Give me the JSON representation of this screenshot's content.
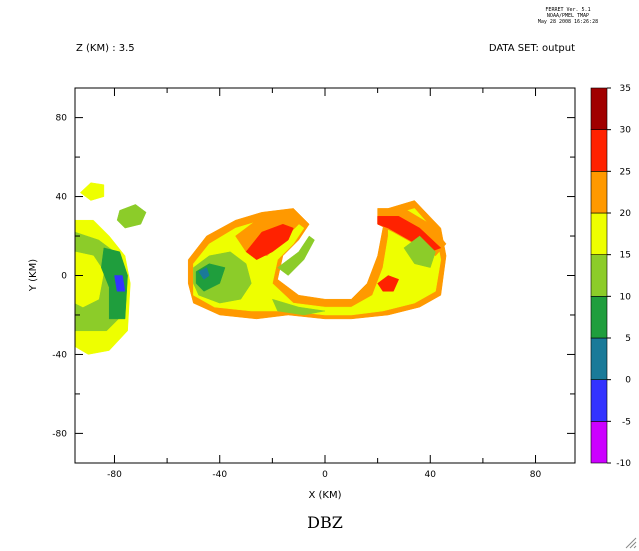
{
  "header": {
    "ferret_lines": [
      "FERRET Ver. 5.1",
      "NOAA/PMEL TMAP",
      "May 28 2008 16:26:28"
    ],
    "z_label": "Z (KM) : 3.5",
    "dataset_label": "DATA SET: output"
  },
  "colors": {
    "levels": [
      "#cc00ff",
      "#3333ff",
      "#1a7a99",
      "#1f9e3d",
      "#8ccc29",
      "#eeff00",
      "#ff9900",
      "#ff2200",
      "#a00000"
    ],
    "background": "#ffffff",
    "axis": "#000000"
  },
  "chart_data": {
    "type": "heatmap",
    "title": "DBZ",
    "xlabel": "X (KM)",
    "ylabel": "Y (KM)",
    "xlim": [
      -95,
      95
    ],
    "ylim": [
      -95,
      95
    ],
    "xticks": [
      -80,
      -40,
      0,
      40,
      80
    ],
    "yticks": [
      80,
      40,
      0,
      -40,
      -80
    ],
    "xtick_labels": [
      "-80",
      "-40",
      "0",
      "40",
      "80"
    ],
    "ytick_labels": [
      "80",
      "40",
      "0",
      "-40",
      "-80"
    ],
    "colorbar": {
      "levels": [
        -10,
        -5,
        0,
        5,
        10,
        15,
        20,
        25,
        30,
        35
      ],
      "labels": [
        "35",
        "30",
        "25",
        "20",
        "15",
        "10",
        "5",
        "0",
        "-5",
        "-10"
      ],
      "placement": "right"
    },
    "regions": [
      {
        "name": "west-cell",
        "level": 15,
        "points": [
          [
            -95,
            28
          ],
          [
            -88,
            28
          ],
          [
            -82,
            20
          ],
          [
            -76,
            10
          ],
          [
            -74,
            -4
          ],
          [
            -75,
            -28
          ],
          [
            -82,
            -38
          ],
          [
            -90,
            -40
          ],
          [
            -95,
            -36
          ]
        ]
      },
      {
        "name": "west-cell-core",
        "level": 10,
        "points": [
          [
            -95,
            22
          ],
          [
            -86,
            18
          ],
          [
            -80,
            12
          ],
          [
            -77,
            0
          ],
          [
            -77,
            -20
          ],
          [
            -83,
            -28
          ],
          [
            -95,
            -28
          ]
        ]
      },
      {
        "name": "west-cell-inner",
        "level": 15,
        "points": [
          [
            -95,
            12
          ],
          [
            -88,
            10
          ],
          [
            -84,
            2
          ],
          [
            -86,
            -12
          ],
          [
            -92,
            -16
          ],
          [
            -95,
            -14
          ]
        ]
      },
      {
        "name": "west-cell-green",
        "level": 5,
        "points": [
          [
            -84,
            14
          ],
          [
            -78,
            12
          ],
          [
            -75,
            0
          ],
          [
            -76,
            -22
          ],
          [
            -82,
            -22
          ],
          [
            -82,
            -6
          ],
          [
            -85,
            4
          ]
        ]
      },
      {
        "name": "west-cell-blue",
        "level": -5,
        "points": [
          [
            -80,
            0
          ],
          [
            -77,
            0
          ],
          [
            -76,
            -8
          ],
          [
            -79,
            -8
          ]
        ]
      },
      {
        "name": "nw-blob-yellow",
        "level": 15,
        "points": [
          [
            -93,
            42
          ],
          [
            -89,
            47
          ],
          [
            -84,
            46
          ],
          [
            -84,
            40
          ],
          [
            -89,
            38
          ]
        ]
      },
      {
        "name": "nw-blob-green",
        "level": 10,
        "points": [
          [
            -78,
            33
          ],
          [
            -72,
            36
          ],
          [
            -68,
            32
          ],
          [
            -70,
            26
          ],
          [
            -76,
            24
          ],
          [
            -79,
            28
          ]
        ]
      },
      {
        "name": "arc-outer",
        "level": 20,
        "points": [
          [
            -52,
            8
          ],
          [
            -45,
            20
          ],
          [
            -34,
            28
          ],
          [
            -24,
            32
          ],
          [
            -12,
            34
          ],
          [
            -6,
            26
          ],
          [
            -10,
            18
          ],
          [
            -16,
            10
          ],
          [
            -18,
            -2
          ],
          [
            -10,
            -10
          ],
          [
            0,
            -12
          ],
          [
            10,
            -12
          ],
          [
            16,
            -4
          ],
          [
            20,
            10
          ],
          [
            22,
            24
          ],
          [
            24,
            34
          ],
          [
            34,
            38
          ],
          [
            44,
            24
          ],
          [
            46,
            10
          ],
          [
            44,
            -10
          ],
          [
            36,
            -16
          ],
          [
            24,
            -20
          ],
          [
            10,
            -22
          ],
          [
            0,
            -22
          ],
          [
            -14,
            -20
          ],
          [
            -26,
            -22
          ],
          [
            -40,
            -20
          ],
          [
            -50,
            -14
          ],
          [
            -52,
            -4
          ]
        ]
      },
      {
        "name": "arc-yellow",
        "level": 15,
        "points": [
          [
            -50,
            6
          ],
          [
            -44,
            16
          ],
          [
            -34,
            24
          ],
          [
            -24,
            28
          ],
          [
            -14,
            30
          ],
          [
            -8,
            24
          ],
          [
            -12,
            16
          ],
          [
            -18,
            8
          ],
          [
            -20,
            -4
          ],
          [
            -12,
            -14
          ],
          [
            0,
            -16
          ],
          [
            10,
            -16
          ],
          [
            18,
            -10
          ],
          [
            22,
            4
          ],
          [
            24,
            20
          ],
          [
            24,
            30
          ],
          [
            34,
            34
          ],
          [
            42,
            22
          ],
          [
            44,
            8
          ],
          [
            42,
            -8
          ],
          [
            34,
            -14
          ],
          [
            22,
            -18
          ],
          [
            10,
            -20
          ],
          [
            0,
            -20
          ],
          [
            -14,
            -18
          ],
          [
            -28,
            -18
          ],
          [
            -42,
            -16
          ],
          [
            -50,
            -10
          ]
        ]
      },
      {
        "name": "arc-green-west",
        "level": 10,
        "points": [
          [
            -50,
            4
          ],
          [
            -44,
            10
          ],
          [
            -36,
            12
          ],
          [
            -30,
            6
          ],
          [
            -28,
            -4
          ],
          [
            -32,
            -12
          ],
          [
            -40,
            -14
          ],
          [
            -48,
            -10
          ],
          [
            -50,
            -4
          ]
        ]
      },
      {
        "name": "arc-darkgreen-west",
        "level": 5,
        "points": [
          [
            -49,
            2
          ],
          [
            -44,
            6
          ],
          [
            -38,
            4
          ],
          [
            -40,
            -4
          ],
          [
            -46,
            -8
          ],
          [
            -49,
            -4
          ]
        ]
      },
      {
        "name": "arc-teal-west",
        "level": 0,
        "points": [
          [
            -48,
            2
          ],
          [
            -45,
            4
          ],
          [
            -44,
            0
          ],
          [
            -46,
            -2
          ]
        ]
      },
      {
        "name": "arc-orange-nw",
        "level": 20,
        "points": [
          [
            -34,
            20
          ],
          [
            -24,
            30
          ],
          [
            -14,
            32
          ],
          [
            -10,
            26
          ],
          [
            -16,
            18
          ],
          [
            -22,
            10
          ],
          [
            -30,
            12
          ]
        ]
      },
      {
        "name": "arc-red-nw",
        "level": 25,
        "points": [
          [
            -30,
            12
          ],
          [
            -24,
            22
          ],
          [
            -16,
            26
          ],
          [
            -12,
            24
          ],
          [
            -14,
            18
          ],
          [
            -20,
            12
          ],
          [
            -26,
            8
          ]
        ]
      },
      {
        "name": "arc-green-inner",
        "level": 10,
        "points": [
          [
            -18,
            4
          ],
          [
            -10,
            12
          ],
          [
            -6,
            20
          ],
          [
            -4,
            18
          ],
          [
            -8,
            8
          ],
          [
            -14,
            0
          ]
        ]
      },
      {
        "name": "arc-ne-orange",
        "level": 20,
        "points": [
          [
            20,
            34
          ],
          [
            30,
            34
          ],
          [
            40,
            26
          ],
          [
            46,
            16
          ],
          [
            42,
            10
          ],
          [
            34,
            16
          ],
          [
            26,
            22
          ],
          [
            20,
            26
          ]
        ]
      },
      {
        "name": "arc-ne-red",
        "level": 25,
        "points": [
          [
            20,
            30
          ],
          [
            28,
            30
          ],
          [
            36,
            24
          ],
          [
            44,
            14
          ],
          [
            40,
            12
          ],
          [
            32,
            18
          ],
          [
            24,
            24
          ],
          [
            20,
            26
          ]
        ]
      },
      {
        "name": "arc-ne-green",
        "level": 10,
        "points": [
          [
            30,
            14
          ],
          [
            36,
            20
          ],
          [
            42,
            12
          ],
          [
            40,
            4
          ],
          [
            34,
            6
          ]
        ]
      },
      {
        "name": "arc-se-red",
        "level": 25,
        "points": [
          [
            20,
            -4
          ],
          [
            24,
            0
          ],
          [
            28,
            -2
          ],
          [
            26,
            -8
          ],
          [
            22,
            -8
          ]
        ]
      },
      {
        "name": "arc-south-green",
        "level": 10,
        "points": [
          [
            -20,
            -12
          ],
          [
            -10,
            -16
          ],
          [
            0,
            -18
          ],
          [
            -8,
            -20
          ],
          [
            -18,
            -18
          ]
        ]
      }
    ]
  },
  "footer": {
    "resize_grip_icon": "resize-grip-icon"
  }
}
